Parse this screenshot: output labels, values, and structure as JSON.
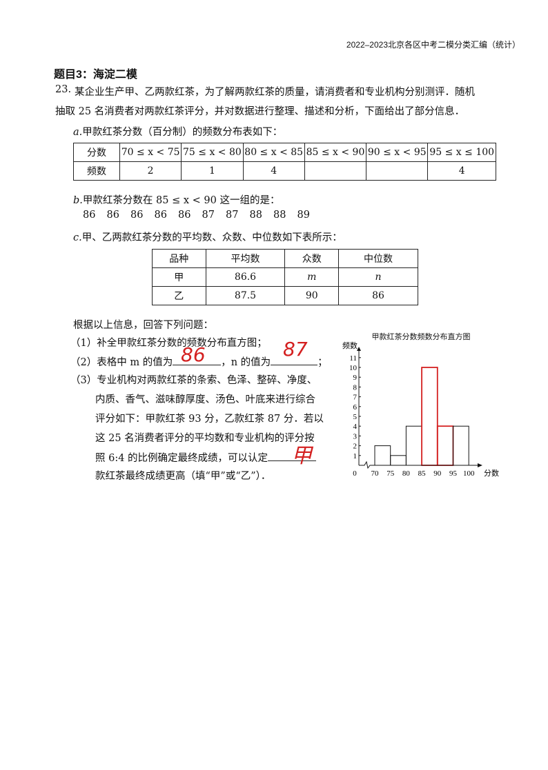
{
  "header": "2022–2023北京各区中考二模分类汇编（统计）",
  "section_title": "题目3：海淀二模",
  "question": {
    "number": "23.",
    "intro_line1": "某企业生产甲、乙两款红茶，为了解两款红茶的质量，请消费者和专业机构分别测评．随机",
    "intro_line2": "抽取 25 名消费者对两款红茶评分，并对数据进行整理、描述和分析，下面给出了部分信息．",
    "a_label": "a.",
    "a_text": "甲款红茶分数（百分制）的频数分布表如下：",
    "table1": {
      "row_headers": [
        "分数",
        "频数"
      ],
      "intervals": [
        "70 ≤ x < 75",
        "75 ≤ x < 80",
        "80 ≤ x < 85",
        "85 ≤ x < 90",
        "90 ≤ x < 95",
        "95 ≤ x ≤ 100"
      ],
      "counts": [
        "2",
        "1",
        "4",
        "",
        "",
        "4"
      ]
    },
    "b_label": "b.",
    "b_text": "甲款红茶分数在 85 ≤ x < 90 这一组的是：",
    "b_values": [
      "86",
      "86",
      "86",
      "86",
      "86",
      "87",
      "87",
      "88",
      "88",
      "89"
    ],
    "c_label": "c.",
    "c_text": "甲、乙两款红茶分数的平均数、众数、中位数如下表所示：",
    "table2": {
      "headers": [
        "品种",
        "平均数",
        "众数",
        "中位数"
      ],
      "rows": [
        [
          "甲",
          "86.6",
          "m",
          "n"
        ],
        [
          "乙",
          "87.5",
          "90",
          "86"
        ]
      ]
    },
    "prompt": "根据以上信息，回答下列问题：",
    "q1": "（1）补全甲款红茶分数的频数分布直方图；",
    "q2_a": "（2）表格中 m 的值为",
    "q2_b": "，n 的值为",
    "q2_c": "；",
    "q3_lines": [
      "（3）专业机构对两款红茶的条索、色泽、整碎、净度、",
      "内质、香气、滋味醇厚度、汤色、叶底来进行综合",
      "评分如下：甲款红茶 93 分，乙款红茶 87 分．若以",
      "这 25 名消费者评分的平均数和专业机构的评分按",
      "照 6:4 的比例确定最终成绩，可以认定",
      "款红茶最终成绩更高（填“甲”或“乙”）．"
    ],
    "handwritten": {
      "m": "86",
      "n": "87",
      "q3": "甲"
    }
  },
  "chart_data": {
    "type": "bar",
    "title": "甲款红茶分数频数分布直方图",
    "xlabel": "分数",
    "ylabel": "频数",
    "x_ticks": [
      "70",
      "75",
      "80",
      "85",
      "90",
      "95",
      "100"
    ],
    "y_ticks": [
      "1",
      "2",
      "3",
      "4",
      "5",
      "6",
      "7",
      "8",
      "9",
      "10",
      "11"
    ],
    "origin_label": "0",
    "bins": [
      [
        70,
        75
      ],
      [
        75,
        80
      ],
      [
        80,
        85
      ],
      [
        85,
        90
      ],
      [
        90,
        95
      ],
      [
        95,
        100
      ]
    ],
    "values": [
      2,
      1,
      4,
      10,
      4,
      4
    ],
    "handdrawn_bins": [
      3,
      4
    ],
    "ylim": [
      0,
      12
    ],
    "colors": {
      "printed": "#111111",
      "handdrawn": "#d42020"
    }
  }
}
